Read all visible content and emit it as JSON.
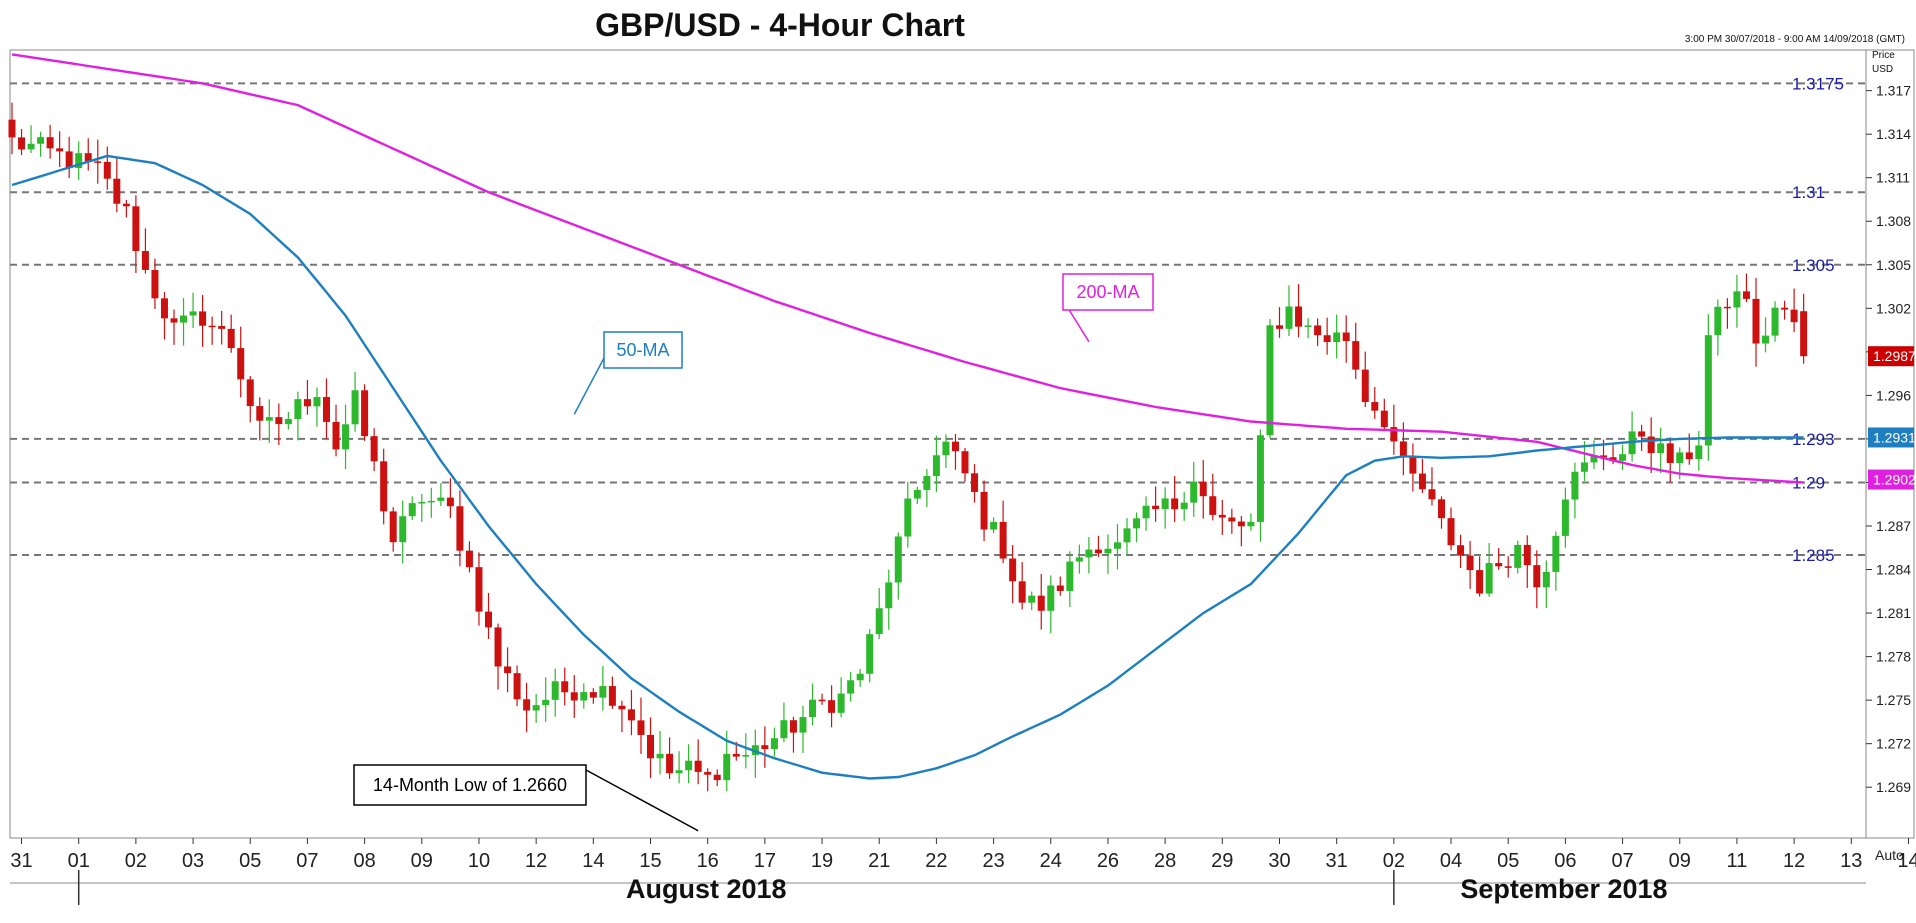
{
  "chart_data": {
    "type": "candlestick",
    "title": "GBP/USD - 4-Hour Chart",
    "date_range": "3:00 PM 30/07/2018 - 9:00 AM 14/09/2018 (GMT)",
    "price_label_1": "Price",
    "price_label_2": "USD",
    "auto_label": "Auto",
    "ylim": [
      1.2655,
      1.3198
    ],
    "yticks": [
      "1.269",
      "1.272",
      "1.275",
      "1.278",
      "1.281",
      "1.284",
      "1.287",
      "1.29",
      "1.293",
      "1.296",
      "1.299",
      "1.302",
      "1.305",
      "1.308",
      "1.311",
      "1.314",
      "1.317"
    ],
    "ytick_values": [
      1.269,
      1.272,
      1.275,
      1.278,
      1.281,
      1.284,
      1.287,
      1.29,
      1.293,
      1.296,
      1.299,
      1.302,
      1.305,
      1.308,
      1.311,
      1.314,
      1.317
    ],
    "x_day_labels": [
      "31",
      "01",
      "02",
      "03",
      "05",
      "07",
      "08",
      "09",
      "10",
      "12",
      "14",
      "15",
      "16",
      "17",
      "19",
      "21",
      "22",
      "23",
      "24",
      "26",
      "28",
      "29",
      "30",
      "31",
      "02",
      "04",
      "05",
      "06",
      "07",
      "09",
      "11",
      "12",
      "13",
      "14"
    ],
    "x_day_positions": [
      1,
      7,
      13,
      19,
      25,
      31,
      37,
      43,
      49,
      55,
      61,
      67,
      73,
      79,
      85,
      91,
      97,
      103,
      109,
      115,
      121,
      127,
      133,
      139,
      145,
      151,
      157,
      163,
      169,
      175,
      181,
      187,
      193,
      199
    ],
    "months": [
      {
        "label": "August 2018",
        "pos": 76,
        "sep": 7
      },
      {
        "label": "September 2018",
        "pos": 166,
        "sep": 145
      }
    ],
    "levels": [
      {
        "value": 1.3175,
        "label": "1.3175"
      },
      {
        "value": 1.31,
        "label": "1.31"
      },
      {
        "value": 1.305,
        "label": "1.305"
      },
      {
        "value": 1.293,
        "label": "1.293"
      },
      {
        "value": 1.29,
        "label": "1.29"
      },
      {
        "value": 1.285,
        "label": "1.285"
      }
    ],
    "price_tags": [
      {
        "label": "1.2987",
        "value": 1.2987,
        "color": "#cc0000"
      },
      {
        "label": "1.2931",
        "value": 1.2931,
        "color": "#1e7fc0"
      },
      {
        "label": "1.2902",
        "value": 1.2902,
        "color": "#e020e0"
      }
    ],
    "close_anchors": [
      [
        0,
        1.3135
      ],
      [
        5,
        1.3125
      ],
      [
        9,
        1.3115
      ],
      [
        12,
        1.3085
      ],
      [
        14,
        1.3045
      ],
      [
        17,
        1.3005
      ],
      [
        20,
        1.3015
      ],
      [
        23,
        1.2995
      ],
      [
        26,
        1.2935
      ],
      [
        29,
        1.2945
      ],
      [
        32,
        1.2965
      ],
      [
        34,
        1.2925
      ],
      [
        36,
        1.2955
      ],
      [
        38,
        1.291
      ],
      [
        40,
        1.286
      ],
      [
        43,
        1.289
      ],
      [
        46,
        1.288
      ],
      [
        48,
        1.284
      ],
      [
        51,
        1.2775
      ],
      [
        54,
        1.2745
      ],
      [
        57,
        1.2755
      ],
      [
        60,
        1.276
      ],
      [
        63,
        1.2755
      ],
      [
        65,
        1.274
      ],
      [
        67,
        1.2715
      ],
      [
        69,
        1.27
      ],
      [
        71,
        1.2702
      ],
      [
        73,
        1.2695
      ],
      [
        75,
        1.2712
      ],
      [
        77,
        1.2712
      ],
      [
        79,
        1.272
      ],
      [
        81,
        1.2728
      ],
      [
        83,
        1.2738
      ],
      [
        85,
        1.2748
      ],
      [
        87,
        1.2752
      ],
      [
        89,
        1.277
      ],
      [
        91,
        1.281
      ],
      [
        92,
        1.2835
      ],
      [
        94,
        1.288
      ],
      [
        96,
        1.291
      ],
      [
        98,
        1.2925
      ],
      [
        100,
        1.2905
      ],
      [
        102,
        1.2875
      ],
      [
        104,
        1.2855
      ],
      [
        106,
        1.2818
      ],
      [
        108,
        1.2815
      ],
      [
        110,
        1.283
      ],
      [
        112,
        1.285
      ],
      [
        114,
        1.286
      ],
      [
        116,
        1.2855
      ],
      [
        118,
        1.287
      ],
      [
        120,
        1.288
      ],
      [
        122,
        1.2885
      ],
      [
        124,
        1.2905
      ],
      [
        126,
        1.2875
      ],
      [
        128,
        1.287
      ],
      [
        130,
        1.287
      ],
      [
        131,
        1.2925
      ],
      [
        132,
        1.3005
      ],
      [
        134,
        1.302
      ],
      [
        136,
        1.3005
      ],
      [
        138,
        1.3
      ],
      [
        140,
        1.3
      ],
      [
        142,
        1.296
      ],
      [
        144,
        1.2945
      ],
      [
        146,
        1.291
      ],
      [
        148,
        1.2895
      ],
      [
        150,
        1.287
      ],
      [
        152,
        1.285
      ],
      [
        154,
        1.283
      ],
      [
        156,
        1.2845
      ],
      [
        158,
        1.2855
      ],
      [
        160,
        1.2835
      ],
      [
        161,
        1.2845
      ],
      [
        162,
        1.287
      ],
      [
        163,
        1.2895
      ],
      [
        165,
        1.291
      ],
      [
        167,
        1.292
      ],
      [
        169,
        1.292
      ],
      [
        171,
        1.2935
      ],
      [
        173,
        1.292
      ],
      [
        175,
        1.2912
      ],
      [
        177,
        1.293
      ],
      [
        178,
        1.3
      ],
      [
        180,
        1.3025
      ],
      [
        182,
        1.303
      ],
      [
        183,
        1.299
      ],
      [
        185,
        1.302
      ],
      [
        187,
        1.301
      ],
      [
        188,
        1.2987
      ]
    ],
    "ma50_anchors": [
      [
        0,
        1.3105
      ],
      [
        5,
        1.3115
      ],
      [
        10,
        1.3125
      ],
      [
        15,
        1.312
      ],
      [
        20,
        1.3105
      ],
      [
        25,
        1.3085
      ],
      [
        30,
        1.3055
      ],
      [
        35,
        1.3015
      ],
      [
        40,
        1.2965
      ],
      [
        45,
        1.2915
      ],
      [
        50,
        1.287
      ],
      [
        55,
        1.283
      ],
      [
        60,
        1.2795
      ],
      [
        65,
        1.2765
      ],
      [
        70,
        1.2742
      ],
      [
        75,
        1.2722
      ],
      [
        80,
        1.271
      ],
      [
        85,
        1.27
      ],
      [
        90,
        1.2696
      ],
      [
        93,
        1.2697
      ],
      [
        97,
        1.2703
      ],
      [
        101,
        1.2712
      ],
      [
        105,
        1.2725
      ],
      [
        110,
        1.274
      ],
      [
        115,
        1.276
      ],
      [
        120,
        1.2785
      ],
      [
        125,
        1.281
      ],
      [
        130,
        1.283
      ],
      [
        135,
        1.2865
      ],
      [
        140,
        1.2905
      ],
      [
        143,
        1.2915
      ],
      [
        146,
        1.2918
      ],
      [
        150,
        1.2917
      ],
      [
        155,
        1.2918
      ],
      [
        160,
        1.2922
      ],
      [
        165,
        1.2925
      ],
      [
        170,
        1.2928
      ],
      [
        175,
        1.293
      ],
      [
        180,
        1.2931
      ],
      [
        188,
        1.2931
      ]
    ],
    "ma200_anchors": [
      [
        0,
        1.3195
      ],
      [
        10,
        1.3185
      ],
      [
        20,
        1.3175
      ],
      [
        30,
        1.316
      ],
      [
        40,
        1.313
      ],
      [
        50,
        1.31
      ],
      [
        60,
        1.3075
      ],
      [
        70,
        1.305
      ],
      [
        80,
        1.3025
      ],
      [
        90,
        1.3003
      ],
      [
        100,
        1.2983
      ],
      [
        110,
        1.2965
      ],
      [
        120,
        1.2952
      ],
      [
        130,
        1.2942
      ],
      [
        140,
        1.2937
      ],
      [
        150,
        1.2935
      ],
      [
        160,
        1.2928
      ],
      [
        165,
        1.292
      ],
      [
        170,
        1.2912
      ],
      [
        175,
        1.2906
      ],
      [
        180,
        1.2903
      ],
      [
        188,
        1.29
      ]
    ],
    "annotations": [
      {
        "label": "200-MA",
        "color": "#e020e0",
        "anchor_index": 113,
        "anchor_value": 1.2997
      },
      {
        "label": "50-MA",
        "color": "#1e7fc0",
        "anchor_index": 59,
        "anchor_value": 1.2947
      },
      {
        "label": "14-Month Low of 1.2660",
        "color": "#000000",
        "anchor_index": 72,
        "anchor_value": 1.266
      }
    ]
  }
}
